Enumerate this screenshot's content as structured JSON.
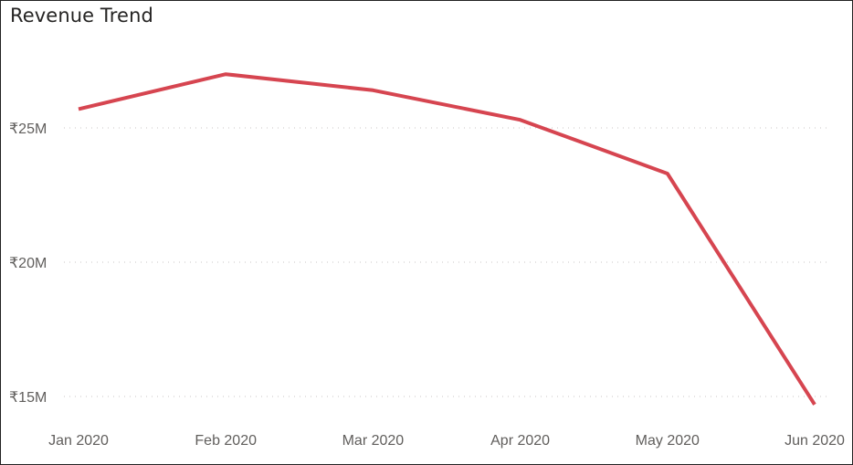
{
  "chart_data": {
    "type": "line",
    "title": "Revenue Trend",
    "xlabel": "",
    "ylabel": "",
    "categories": [
      "Jan 2020",
      "Feb 2020",
      "Mar 2020",
      "Apr 2020",
      "May 2020",
      "Jun 2020"
    ],
    "series": [
      {
        "values": [
          25.7,
          27.0,
          26.4,
          25.3,
          23.3,
          14.7
        ],
        "color": "#d64550"
      }
    ],
    "yticks": [
      {
        "value": 15,
        "label": "₹15M"
      },
      {
        "value": 20,
        "label": "₹20M"
      },
      {
        "value": 25,
        "label": "₹25M"
      }
    ],
    "ylim": [
      14.2,
      29.2
    ],
    "grid": true,
    "legend": "none"
  }
}
